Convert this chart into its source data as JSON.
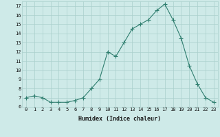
{
  "x": [
    0,
    1,
    2,
    3,
    4,
    5,
    6,
    7,
    8,
    9,
    10,
    11,
    12,
    13,
    14,
    15,
    16,
    17,
    18,
    19,
    20,
    21,
    22,
    23
  ],
  "y": [
    7,
    7.2,
    7,
    6.5,
    6.5,
    6.5,
    6.7,
    7,
    8,
    9,
    12,
    11.5,
    13,
    14.5,
    15,
    15.5,
    16.5,
    17.2,
    15.5,
    13.5,
    10.5,
    8.5,
    7,
    6.5
  ],
  "line_color": "#2e7d6e",
  "marker": "+",
  "marker_size": 4,
  "bg_color": "#ceeae8",
  "grid_color": "#aacfcc",
  "xlabel": "Humidex (Indice chaleur)",
  "ylim": [
    6,
    17.5
  ],
  "xlim": [
    -0.5,
    23.5
  ],
  "yticks": [
    6,
    7,
    8,
    9,
    10,
    11,
    12,
    13,
    14,
    15,
    16,
    17
  ],
  "xticks": [
    0,
    1,
    2,
    3,
    4,
    5,
    6,
    7,
    8,
    9,
    10,
    11,
    12,
    13,
    14,
    15,
    16,
    17,
    18,
    19,
    20,
    21,
    22,
    23
  ],
  "tick_fontsize": 5,
  "xlabel_fontsize": 6,
  "linewidth": 0.8,
  "marker_linewidth": 0.8
}
